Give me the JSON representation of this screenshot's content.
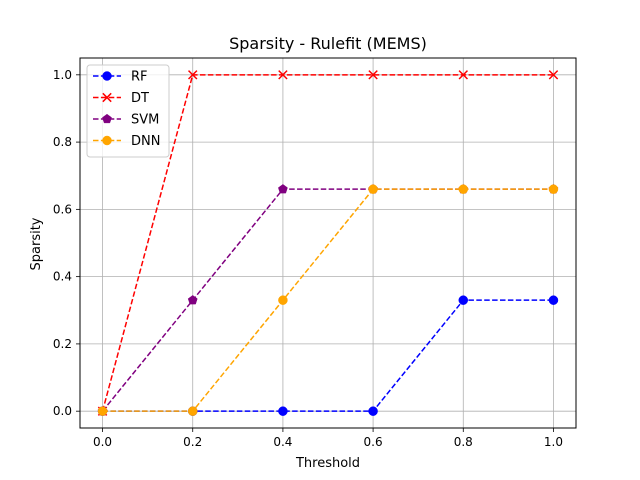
{
  "chart_data": {
    "type": "line",
    "title": "Sparsity - Rulefit (MEMS)",
    "xlabel": "Threshold",
    "ylabel": "Sparsity",
    "xlim": [
      -0.05,
      1.05
    ],
    "ylim": [
      -0.05,
      1.05
    ],
    "grid": true,
    "legend_position": "top-left",
    "x": [
      0.0,
      0.2,
      0.4,
      0.6,
      0.8,
      1.0
    ],
    "xticks": [
      "0.0",
      "0.2",
      "0.4",
      "0.6",
      "0.8",
      "1.0"
    ],
    "yticks": [
      "0.0",
      "0.2",
      "0.4",
      "0.6",
      "0.8",
      "1.0"
    ],
    "series": [
      {
        "name": "RF",
        "color": "#0000ff",
        "marker": "circle",
        "values": [
          0.0,
          0.0,
          0.0,
          0.0,
          0.33,
          0.33
        ]
      },
      {
        "name": "DT",
        "color": "#ff0000",
        "marker": "x",
        "values": [
          0.0,
          1.0,
          1.0,
          1.0,
          1.0,
          1.0
        ]
      },
      {
        "name": "SVM",
        "color": "#800080",
        "marker": "pentagon",
        "values": [
          0.0,
          0.33,
          0.66,
          0.66,
          0.66,
          0.66
        ]
      },
      {
        "name": "DNN",
        "color": "#ffa500",
        "marker": "circle",
        "values": [
          0.0,
          0.0,
          0.33,
          0.66,
          0.66,
          0.66
        ]
      }
    ]
  }
}
